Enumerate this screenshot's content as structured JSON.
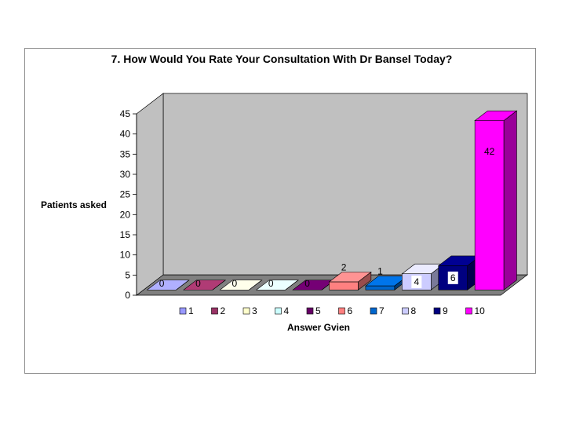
{
  "chart_data": {
    "type": "bar",
    "title": "7. How Would You Rate Your Consultation With Dr Bansel Today?",
    "xlabel": "Answer Gvien",
    "ylabel": "Patients asked",
    "categories": [
      "1",
      "2",
      "3",
      "4",
      "5",
      "6",
      "7",
      "8",
      "9",
      "10"
    ],
    "values": [
      0,
      0,
      0,
      0,
      0,
      2,
      1,
      4,
      6,
      42
    ],
    "ylim": [
      0,
      45
    ],
    "yticks": [
      0,
      5,
      10,
      15,
      20,
      25,
      30,
      35,
      40,
      45
    ],
    "grid": false,
    "legend": "bottom",
    "style": "3d-column",
    "colors": [
      "#9999ff",
      "#993366",
      "#ffffcc",
      "#ccffff",
      "#660066",
      "#ff8080",
      "#0066cc",
      "#ccccff",
      "#000080",
      "#ff00ff"
    ],
    "wall_color": "#c0c0c0",
    "floor_color": "#808080"
  }
}
